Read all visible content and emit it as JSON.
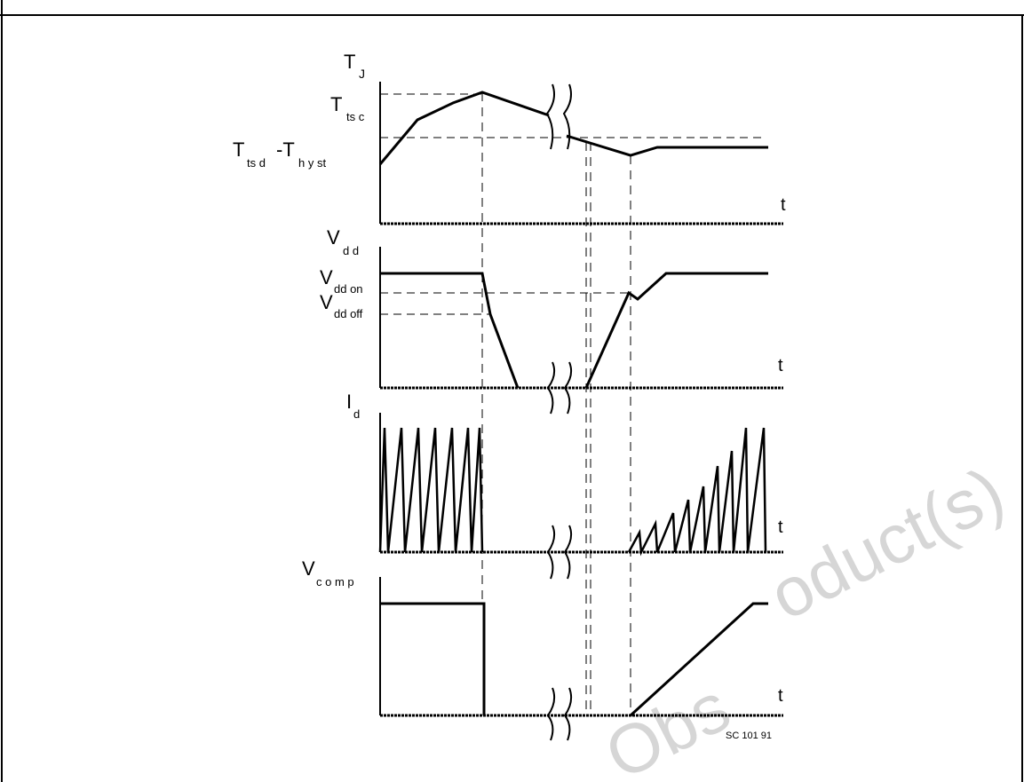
{
  "labels": {
    "tj_T": "T",
    "tj_sub": "J",
    "ttsc_T": "T",
    "ttsc_sub": "ts c",
    "ttsd_T": "T",
    "ttsd_sub": "ts d",
    "thyst_prefix": "-T",
    "thyst_sub": "h y st",
    "t1": "t",
    "vdd_V": "V",
    "vdd_sub": "d d",
    "vddon_V": "V",
    "vddon_sub": "dd on",
    "vddoff_V": "V",
    "vddoff_sub": "dd off",
    "t2": "t",
    "id_I": "I",
    "id_sub": "d",
    "t3": "t",
    "vcomp_V": "V",
    "vcomp_sub": "c o m p",
    "t4": "t",
    "ref": "SC 101 91"
  },
  "watermark": {
    "right": "oduct(s)",
    "bottom": "Obs"
  },
  "colors": {
    "ink": "#000000",
    "frame": "#000000",
    "watermark": "#d6d6d6"
  }
}
